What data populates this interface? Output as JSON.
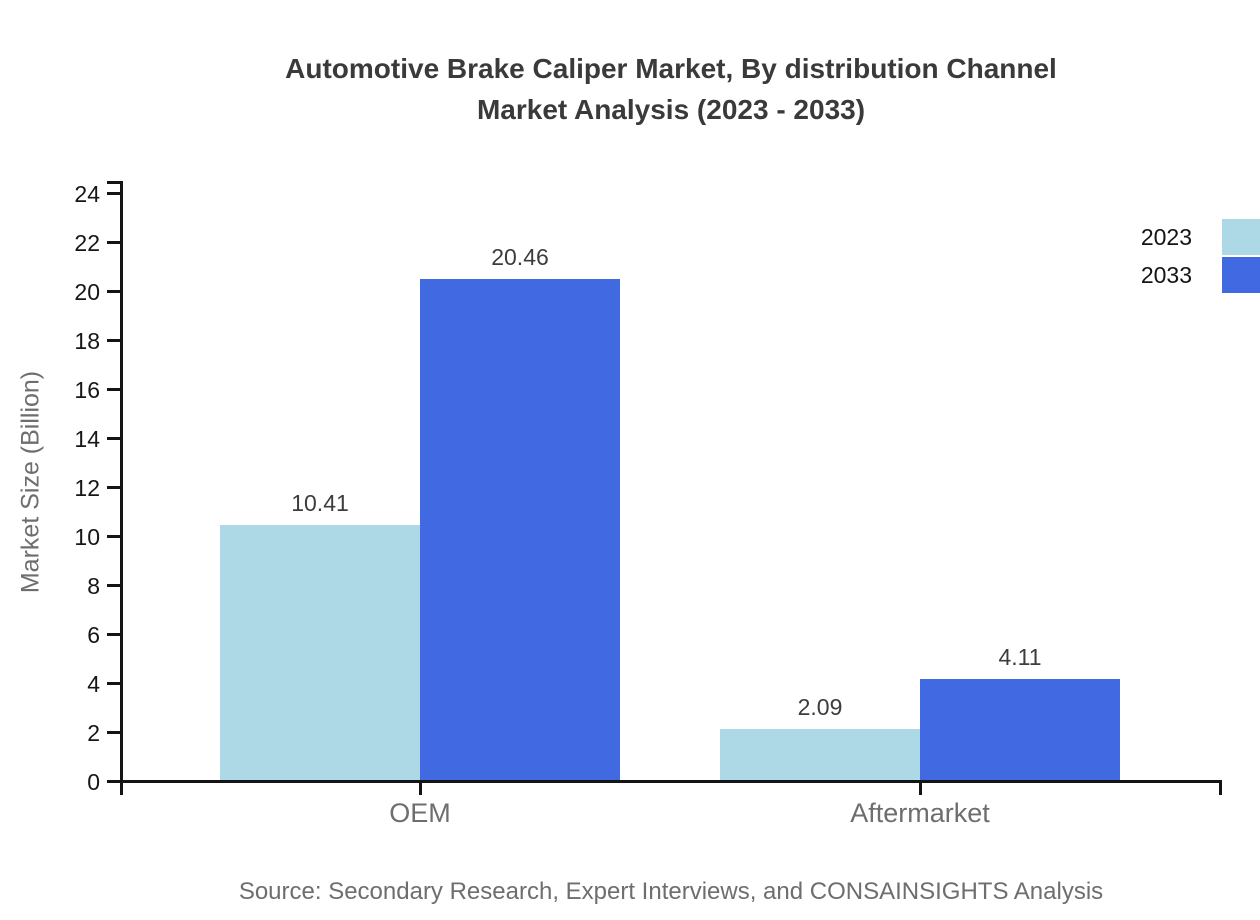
{
  "title_lines": [
    "Automotive Brake Caliper Market, By distribution Channel",
    "Market Analysis (2023 - 2033)"
  ],
  "source": "Source: Secondary Research, Expert Interviews, and CONSAINSIGHTS Analysis",
  "chart_data": {
    "type": "bar",
    "title": "Automotive Brake Caliper Market, By distribution Channel Market Analysis (2023 - 2033)",
    "categories": [
      "OEM",
      "Aftermarket"
    ],
    "series": [
      {
        "name": "2023",
        "values": [
          10.41,
          2.09
        ],
        "color": "#ADD8E6"
      },
      {
        "name": "2033",
        "values": [
          20.46,
          4.11
        ],
        "color": "#4169E1"
      }
    ],
    "xlabel": "",
    "ylabel": "Market Size (Billion)",
    "ylim": [
      0,
      24
    ],
    "ytick_step": 2,
    "grid": false,
    "legend_position": "top-right",
    "value_labels": true,
    "axis_color": "#141414",
    "label_color": "#6e6e6e",
    "value_label_color": "#3d3d3d"
  }
}
